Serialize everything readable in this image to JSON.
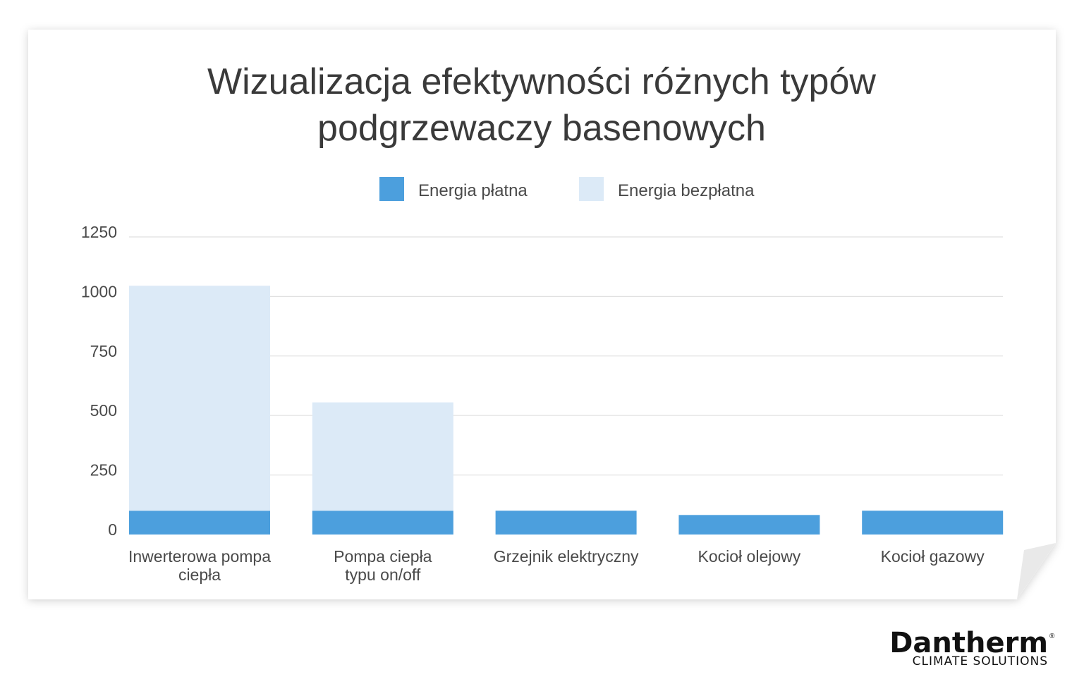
{
  "chart_data": {
    "type": "bar",
    "stacked": true,
    "title_lines": [
      "Wizualizacja efektywności różnych typów",
      "podgrzewaczy basenowych"
    ],
    "categories": [
      [
        "Inwerterowa pompa",
        "ciepła"
      ],
      [
        "Pompa ciepła",
        "typu on/off"
      ],
      [
        "Grzejnik elektryczny"
      ],
      [
        "Kocioł olejowy"
      ],
      [
        "Kocioł gazowy"
      ]
    ],
    "series": [
      {
        "name": "Energia płatna",
        "color": "#4c9fdd",
        "values": [
          100,
          100,
          100,
          82,
          100
        ]
      },
      {
        "name": "Energia bezpłatna",
        "color": "#dceaf7",
        "values": [
          945,
          455,
          0,
          0,
          0
        ]
      }
    ],
    "yticks": [
      "0",
      "250",
      "500",
      "750",
      "1000",
      "1250"
    ],
    "ylim": [
      0,
      1250
    ],
    "grid": true,
    "legend_position": "top-center"
  },
  "logo": {
    "name": "Dantherm",
    "registered": "®",
    "tagline": "CLIMATE SOLUTIONS"
  }
}
